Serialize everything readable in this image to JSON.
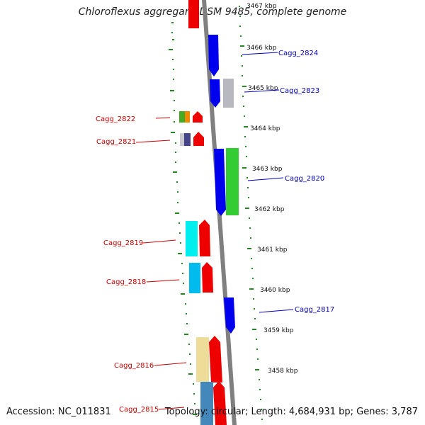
{
  "title": "Chloroflexus aggregans DSM 9485, complete genome",
  "footer": {
    "accession": "Accession: NC_011831",
    "summary": "Topology: circular; Length: 4,684,931 bp; Genes: 3,787"
  },
  "colors": {
    "forward_label": "#0000bb",
    "reverse_label": "#cc0000",
    "backbone": "#808080",
    "ticks": "#228822"
  },
  "kbp_labels": [
    "3467 kbp",
    "3466 kbp",
    "3465 kbp",
    "3464 kbp",
    "3463 kbp",
    "3462 kbp",
    "3461 kbp",
    "3460 kbp",
    "3459 kbp",
    "3458 kbp"
  ],
  "gene_labels": {
    "cagg_2824": "Cagg_2824",
    "cagg_2823": "Cagg_2823",
    "cagg_2822": "Cagg_2822",
    "cagg_2821": "Cagg_2821",
    "cagg_2820": "Cagg_2820",
    "cagg_2819": "Cagg_2819",
    "cagg_2818": "Cagg_2818",
    "cagg_2817": "Cagg_2817",
    "cagg_2816": "Cagg_2816",
    "cagg_2815": "Cagg_2815"
  }
}
